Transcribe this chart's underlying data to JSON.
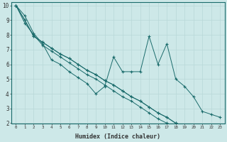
{
  "xlabel": "Humidex (Indice chaleur)",
  "xlim": [
    -0.5,
    23.5
  ],
  "ylim": [
    2,
    10.2
  ],
  "xticks": [
    0,
    1,
    2,
    3,
    4,
    5,
    6,
    7,
    8,
    9,
    10,
    11,
    12,
    13,
    14,
    15,
    16,
    17,
    18,
    19,
    20,
    21,
    22,
    23
  ],
  "yticks": [
    2,
    3,
    4,
    5,
    6,
    7,
    8,
    9,
    10
  ],
  "bg_color": "#cde8e8",
  "line_color": "#1a6b6b",
  "grid_color": "#b8d8d8",
  "series": [
    [
      10,
      9.3,
      8.1,
      7.4,
      6.3,
      6.0,
      5.5,
      5.1,
      4.7,
      4.0,
      4.5,
      6.5,
      5.5,
      5.5,
      5.5,
      7.9,
      6.0,
      7.4,
      5.0,
      4.5,
      3.8,
      2.8,
      2.6,
      2.4
    ],
    [
      10,
      9.0,
      7.9,
      7.5,
      7.1,
      6.7,
      6.4,
      6.0,
      5.6,
      5.3,
      4.9,
      4.6,
      4.2,
      3.8,
      3.5,
      3.1,
      2.7,
      2.4,
      2.0,
      null,
      null,
      null,
      null,
      null
    ],
    [
      10,
      9.0,
      7.9,
      7.5,
      7.1,
      6.7,
      6.4,
      6.0,
      5.6,
      5.3,
      4.9,
      4.6,
      4.2,
      3.8,
      3.5,
      3.1,
      2.7,
      2.4,
      2.0,
      null,
      null,
      null,
      null,
      null
    ],
    [
      10,
      8.8,
      8.0,
      7.3,
      6.9,
      6.5,
      6.1,
      5.7,
      5.3,
      5.0,
      4.6,
      4.2,
      3.8,
      3.5,
      3.1,
      2.7,
      2.3,
      2.0,
      null,
      null,
      null,
      null,
      null,
      null
    ]
  ]
}
